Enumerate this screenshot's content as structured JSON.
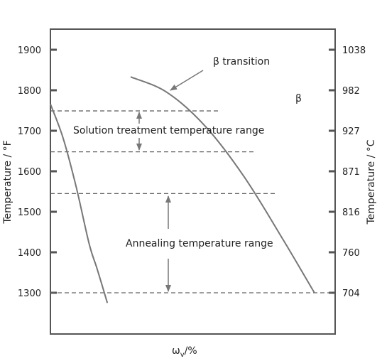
{
  "chart_data": {
    "type": "line",
    "xlabel": "ω_v/%",
    "xlabel_main": "ω",
    "xlabel_sub": "v",
    "xlabel_unit": "/%",
    "ylabel_left": "Temperature / °F",
    "ylabel_right": "Temperature / °C",
    "ylim": [
      1200,
      1950
    ],
    "left_ticks": [
      1300,
      1400,
      1500,
      1600,
      1700,
      1800,
      1900
    ],
    "right_ticks": [
      {
        "f": 1300,
        "c": "704"
      },
      {
        "f": 1400,
        "c": "760"
      },
      {
        "f": 1500,
        "c": "816"
      },
      {
        "f": 1600,
        "c": "871"
      },
      {
        "f": 1700,
        "c": "927"
      },
      {
        "f": 1800,
        "c": "982"
      },
      {
        "f": 1900,
        "c": "1038"
      }
    ],
    "curves": [
      {
        "points": [
          [
            0,
            1766
          ],
          [
            5,
            1680
          ],
          [
            10,
            1560
          ],
          [
            15,
            1420
          ],
          [
            18,
            1360
          ],
          [
            22,
            1275
          ]
        ]
      },
      {
        "points": [
          [
            31,
            1833
          ],
          [
            45,
            1795
          ],
          [
            60,
            1710
          ],
          [
            75,
            1585
          ],
          [
            90,
            1430
          ],
          [
            102,
            1300
          ]
        ]
      }
    ],
    "xlim": [
      0,
      110
    ],
    "dashed_lines": [
      {
        "y": 1749,
        "x_end": 65
      },
      {
        "y": 1648,
        "x_end": 79
      },
      {
        "y": 1545,
        "x_end": 87
      },
      {
        "y": 1300,
        "x_end": 110
      }
    ],
    "annotations": {
      "beta_transition": "β transition",
      "beta": "β",
      "solution_range": "Solution treatment temperature range",
      "annealing_range": "Annealing temperature range"
    }
  }
}
